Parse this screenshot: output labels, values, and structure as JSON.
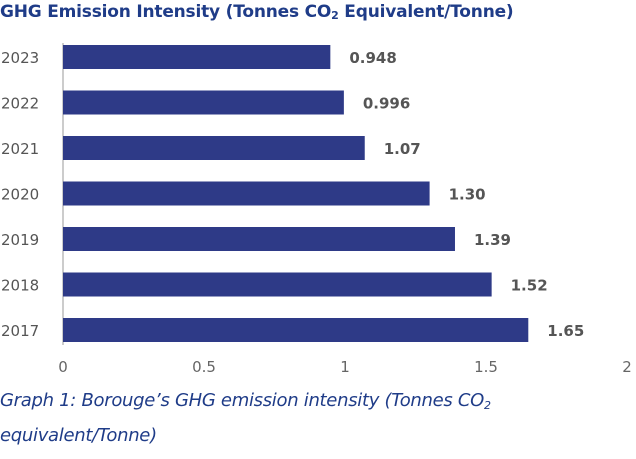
{
  "title_parts": {
    "before": "GHG Emission Intensity (Tonnes CO",
    "sub": "2",
    "after": " Equivalent/Tonne)"
  },
  "caption_parts": {
    "before": "Graph 1: Borouge’s GHG emission intensity (Tonnes CO",
    "sub": "2",
    "after": " equivalent/Tonne)"
  },
  "colors": {
    "bar": "#2e3a87",
    "title": "#1f3c88",
    "label": "#555555",
    "tick": "#666666",
    "axis": "#bbbbbb"
  },
  "chart_data": {
    "type": "bar",
    "orientation": "horizontal",
    "categories": [
      "2023",
      "2022",
      "2021",
      "2020",
      "2019",
      "2018",
      "2017"
    ],
    "series": [
      {
        "values": [
          0.948,
          0.996,
          1.07,
          1.3,
          1.39,
          1.52,
          1.65
        ],
        "value_labels": [
          "0.948",
          "0.996",
          "1.07",
          "1.30",
          "1.39",
          "1.52",
          "1.65"
        ]
      }
    ],
    "x_ticks": [
      "0",
      "0.5",
      "1",
      "1.5",
      "2"
    ],
    "xlim": [
      0,
      2
    ],
    "title": "GHG Emission Intensity (Tonnes CO2 Equivalent/Tonne)",
    "xlabel": "",
    "ylabel": "",
    "grid": false,
    "legend": "none"
  }
}
